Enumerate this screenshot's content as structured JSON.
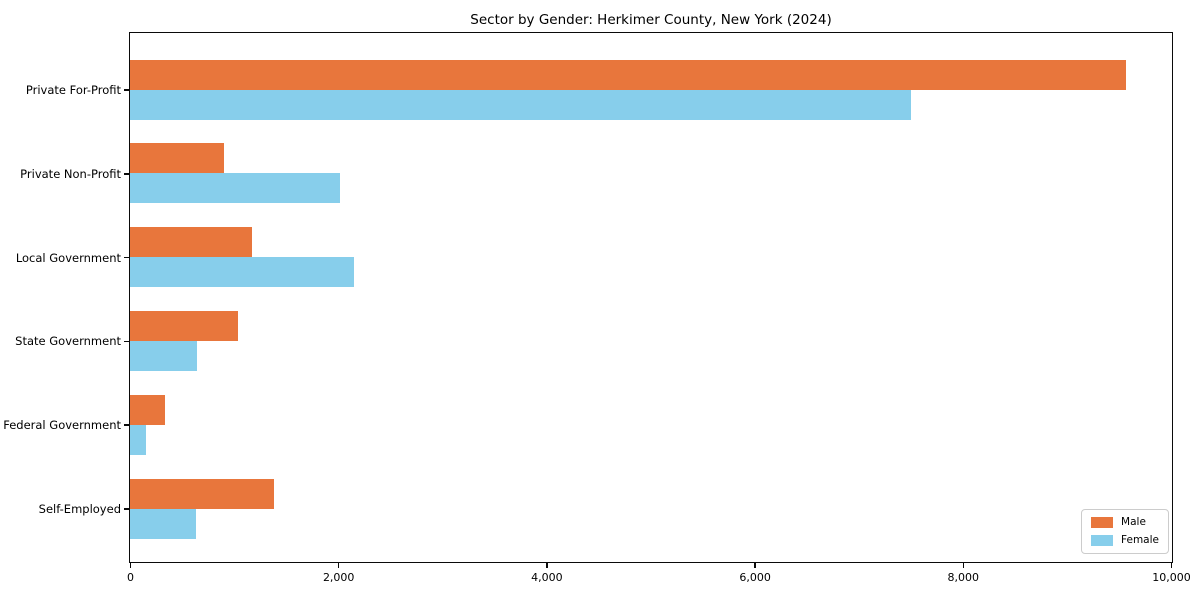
{
  "chart_data": {
    "type": "bar",
    "orientation": "horizontal",
    "title": "Sector by Gender: Herkimer County, New York (2024)",
    "categories": [
      "Private For-Profit",
      "Private Non-Profit",
      "Local Government",
      "State Government",
      "Federal Government",
      "Self-Employed"
    ],
    "series": [
      {
        "name": "Male",
        "color": "#e8763c",
        "values": [
          9570,
          900,
          1170,
          1040,
          340,
          1380
        ]
      },
      {
        "name": "Female",
        "color": "#87ceeb",
        "values": [
          7500,
          2020,
          2150,
          640,
          155,
          630
        ]
      }
    ],
    "xlim": [
      0,
      10000
    ],
    "xticks": [
      0,
      2000,
      4000,
      6000,
      8000,
      10000
    ],
    "xtick_labels": [
      "0",
      "2,000",
      "4,000",
      "6,000",
      "8,000",
      "10,000"
    ],
    "legend": {
      "position": "lower right"
    },
    "grid": false,
    "colors": {
      "background": "#ffffff",
      "spine": "#0a0a0a",
      "legend_border": "#cccccc"
    }
  }
}
